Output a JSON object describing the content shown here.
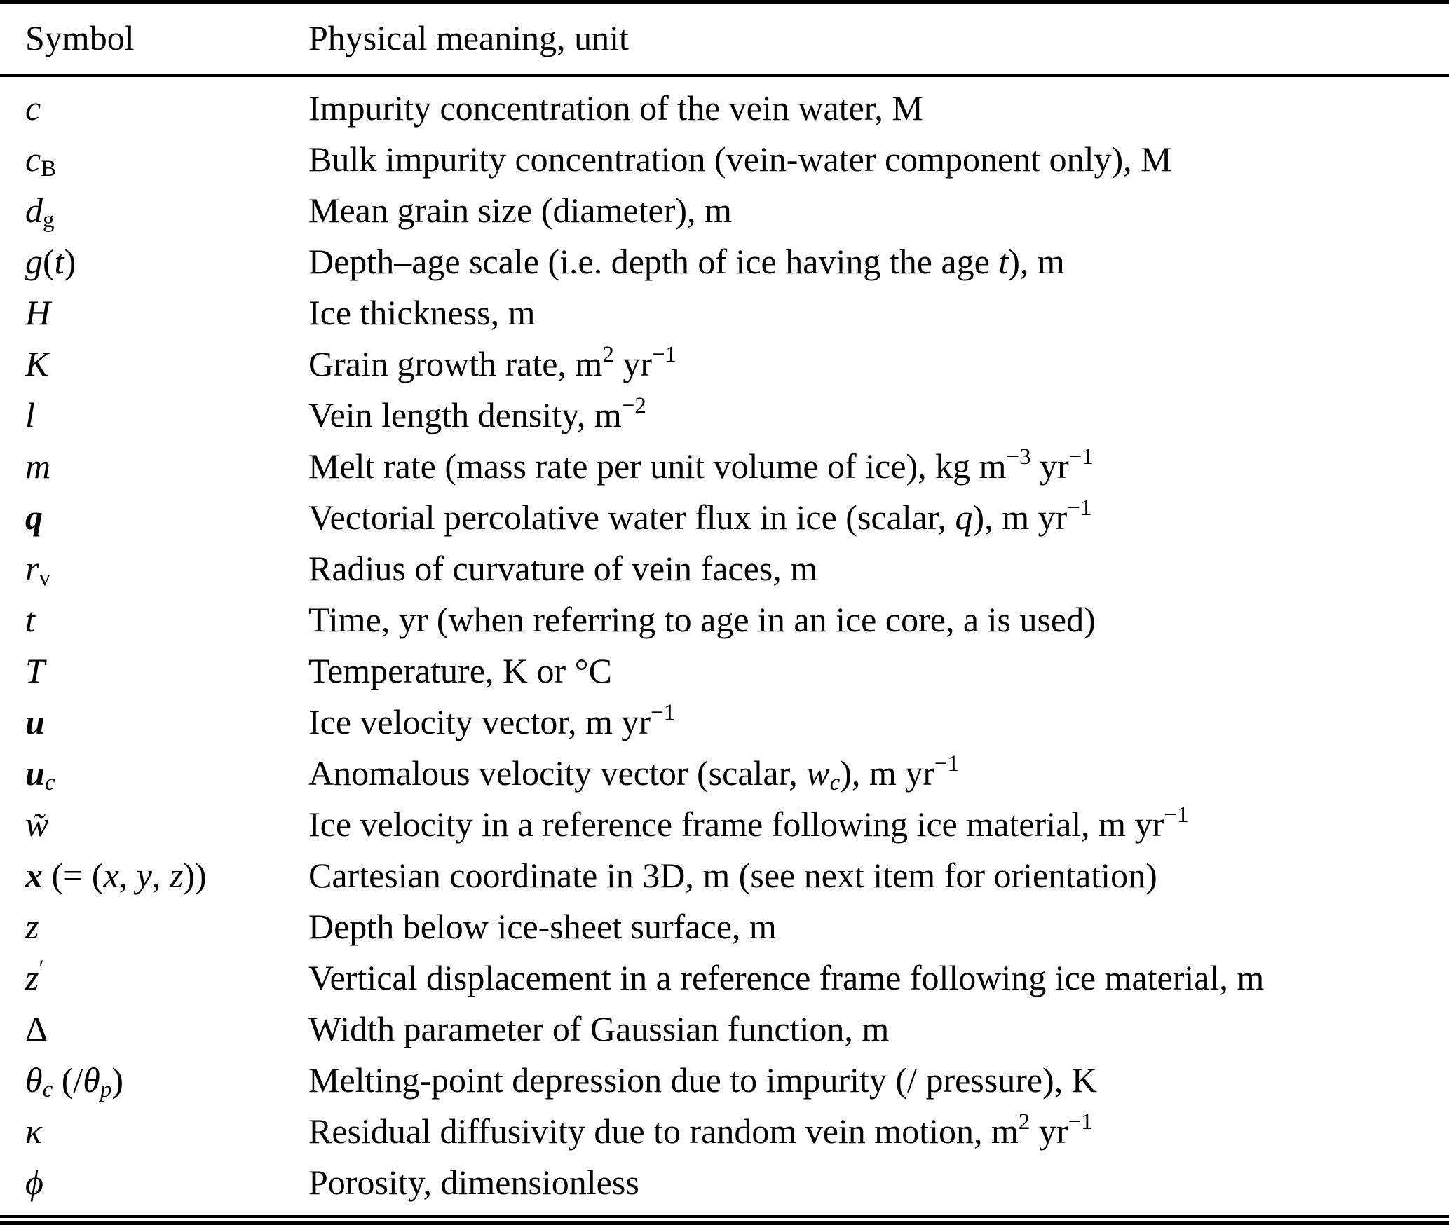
{
  "colors": {
    "background": "#ffffff",
    "text": "#000000",
    "rule": "#000000"
  },
  "table": {
    "headers": [
      "Symbol",
      "Physical meaning, unit"
    ],
    "rows": [
      {
        "symbol": [
          [
            "c",
            "i"
          ]
        ],
        "meaning": [
          [
            "Impurity concentration of the vein water, M"
          ]
        ]
      },
      {
        "symbol": [
          [
            "c",
            "i"
          ],
          [
            "B",
            "sub"
          ]
        ],
        "meaning": [
          [
            "Bulk impurity concentration (vein-water component only), M"
          ]
        ]
      },
      {
        "symbol": [
          [
            "d",
            "i"
          ],
          [
            "g",
            "sub"
          ]
        ],
        "meaning": [
          [
            "Mean grain size (diameter), m"
          ]
        ]
      },
      {
        "symbol": [
          [
            "g",
            "i"
          ],
          [
            "("
          ],
          [
            "t",
            "i"
          ],
          [
            ")"
          ]
        ],
        "meaning": [
          [
            "Depth–age scale (i.e. depth of ice having the age "
          ],
          [
            "t",
            "i"
          ],
          [
            "), m"
          ]
        ]
      },
      {
        "symbol": [
          [
            "H",
            "i"
          ]
        ],
        "meaning": [
          [
            "Ice thickness, m"
          ]
        ]
      },
      {
        "symbol": [
          [
            "K",
            "i"
          ]
        ],
        "meaning": [
          [
            "Grain growth rate, m"
          ],
          [
            "2",
            "sup"
          ],
          [
            " yr"
          ],
          [
            "−1",
            "sup"
          ]
        ]
      },
      {
        "symbol": [
          [
            "l",
            "i"
          ]
        ],
        "meaning": [
          [
            "Vein length density, m"
          ],
          [
            "−2",
            "sup"
          ]
        ]
      },
      {
        "symbol": [
          [
            "m",
            "i"
          ]
        ],
        "meaning": [
          [
            "Melt rate (mass rate per unit volume of ice), kg m"
          ],
          [
            "−3",
            "sup"
          ],
          [
            " yr"
          ],
          [
            "−1",
            "sup"
          ]
        ]
      },
      {
        "symbol": [
          [
            "q",
            "bi"
          ]
        ],
        "meaning": [
          [
            "Vectorial percolative water flux in ice (scalar, "
          ],
          [
            "q",
            "i"
          ],
          [
            "), m yr"
          ],
          [
            "−1",
            "sup"
          ]
        ]
      },
      {
        "symbol": [
          [
            "r",
            "i"
          ],
          [
            "v",
            "sub"
          ]
        ],
        "meaning": [
          [
            "Radius of curvature of vein faces, m"
          ]
        ]
      },
      {
        "symbol": [
          [
            "t",
            "i"
          ]
        ],
        "meaning": [
          [
            "Time, yr (when referring to age in an ice core, a is used)"
          ]
        ]
      },
      {
        "symbol": [
          [
            "T",
            "i"
          ]
        ],
        "meaning": [
          [
            "Temperature, K or °C"
          ]
        ]
      },
      {
        "symbol": [
          [
            "u",
            "bi"
          ]
        ],
        "meaning": [
          [
            "Ice velocity vector, m yr"
          ],
          [
            "−1",
            "sup"
          ]
        ]
      },
      {
        "symbol": [
          [
            "u",
            "bi"
          ],
          [
            "c",
            "subi"
          ]
        ],
        "meaning": [
          [
            "Anomalous velocity vector (scalar, "
          ],
          [
            "w",
            "i"
          ],
          [
            "c",
            "subi"
          ],
          [
            "), m yr"
          ],
          [
            "−1",
            "sup"
          ]
        ]
      },
      {
        "symbol": [
          [
            "w̃",
            "i"
          ]
        ],
        "meaning": [
          [
            "Ice velocity in a reference frame following ice material, m yr"
          ],
          [
            "−1",
            "sup"
          ]
        ]
      },
      {
        "symbol": [
          [
            "x",
            "bi"
          ],
          [
            " (= ("
          ],
          [
            "x",
            "i"
          ],
          [
            ", "
          ],
          [
            "y",
            "i"
          ],
          [
            ", "
          ],
          [
            "z",
            "i"
          ],
          [
            "))"
          ]
        ],
        "meaning": [
          [
            "Cartesian coordinate in 3D, m (see next item for orientation)"
          ]
        ]
      },
      {
        "symbol": [
          [
            "z",
            "i"
          ]
        ],
        "meaning": [
          [
            "Depth below ice-sheet surface, m"
          ]
        ]
      },
      {
        "symbol": [
          [
            "z",
            "i"
          ],
          [
            "′",
            "sup"
          ]
        ],
        "meaning": [
          [
            "Vertical displacement in a reference frame following ice material, m"
          ]
        ]
      },
      {
        "symbol": [
          [
            "Δ"
          ]
        ],
        "meaning": [
          [
            "Width parameter of Gaussian function, m"
          ]
        ]
      },
      {
        "symbol": [
          [
            "θ",
            "i"
          ],
          [
            "c",
            "subi"
          ],
          [
            " (/"
          ],
          [
            "θ",
            "i"
          ],
          [
            "p",
            "subi"
          ],
          [
            ")"
          ]
        ],
        "meaning": [
          [
            "Melting-point depression due to impurity (/ pressure), K"
          ]
        ]
      },
      {
        "symbol": [
          [
            "κ",
            "i"
          ]
        ],
        "meaning": [
          [
            "Residual diffusivity due to random vein motion, m"
          ],
          [
            "2",
            "sup"
          ],
          [
            " yr"
          ],
          [
            "−1",
            "sup"
          ]
        ]
      },
      {
        "symbol": [
          [
            "ϕ",
            "i"
          ]
        ],
        "meaning": [
          [
            "Porosity, dimensionless"
          ]
        ]
      }
    ]
  }
}
